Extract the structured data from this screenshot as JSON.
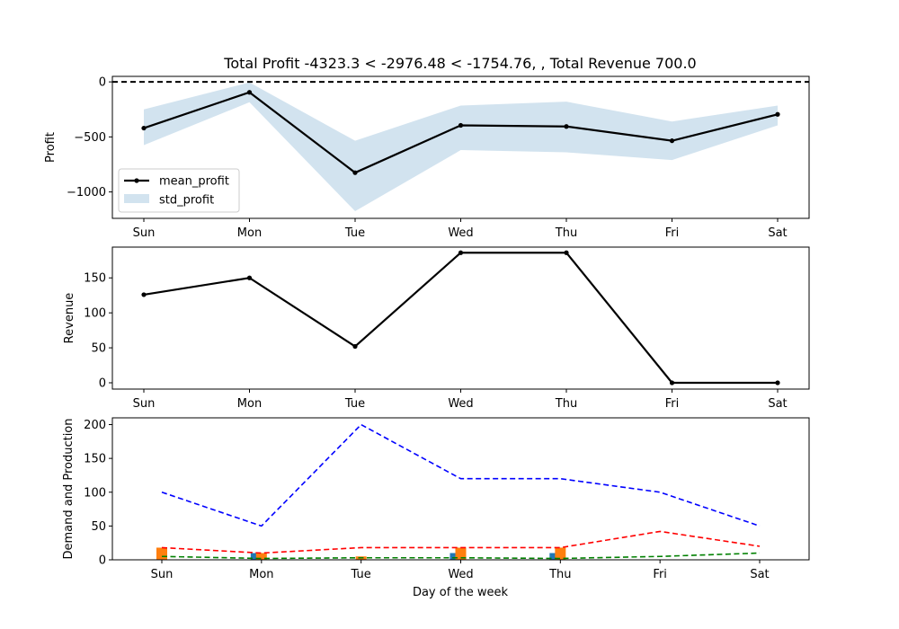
{
  "chart_data": [
    {
      "type": "line",
      "title": "Total Profit -4323.3 < -2976.48 < -1754.76, , Total Revenue 700.0",
      "xlabel": "",
      "ylabel": "Profit",
      "categories": [
        "Sun",
        "Mon",
        "Tue",
        "Wed",
        "Thu",
        "Fri",
        "Sat"
      ],
      "yticks": [
        0,
        -500,
        -1000
      ],
      "ytick_labels": [
        "0",
        "−500",
        "−1000"
      ],
      "ylim": [
        -1240,
        50
      ],
      "reference_line": 0,
      "series": [
        {
          "name": "mean_profit",
          "values": [
            -420,
            -95,
            -825,
            -395,
            -405,
            -535,
            -295
          ],
          "color": "#000000"
        }
      ],
      "band": {
        "name": "std_profit",
        "lower": [
          -575,
          -185,
          -1175,
          -620,
          -640,
          -710,
          -395
        ],
        "upper": [
          -250,
          -5,
          -535,
          -215,
          -180,
          -360,
          -215
        ],
        "color": "#a6c8e0"
      },
      "legend": "lower-left"
    },
    {
      "type": "line",
      "xlabel": "",
      "ylabel": "Revenue",
      "categories": [
        "Sun",
        "Mon",
        "Tue",
        "Wed",
        "Thu",
        "Fri",
        "Sat"
      ],
      "yticks": [
        0,
        50,
        100,
        150
      ],
      "ytick_labels": [
        "0",
        "50",
        "100",
        "150"
      ],
      "ylim": [
        -9,
        194
      ],
      "series": [
        {
          "values": [
            126,
            150,
            52,
            186,
            186,
            0,
            0
          ],
          "color": "#000000"
        }
      ]
    },
    {
      "type": "line",
      "xlabel": "Day of the week",
      "ylabel": "Demand and Production",
      "categories": [
        "Sun",
        "Mon",
        "Tue",
        "Wed",
        "Thu",
        "Fri",
        "Sat"
      ],
      "yticks": [
        0,
        50,
        100,
        150,
        200
      ],
      "ytick_labels": [
        "0",
        "50",
        "100",
        "150",
        "200"
      ],
      "ylim": [
        0,
        210
      ],
      "series": [
        {
          "values": [
            100,
            50,
            200,
            120,
            120,
            100,
            50
          ],
          "color": "#0000ff",
          "style": "dashed"
        },
        {
          "values": [
            18,
            10,
            18,
            18,
            18,
            42,
            20
          ],
          "color": "#ff0000",
          "style": "dashed"
        },
        {
          "values": [
            5,
            2,
            3,
            3,
            2,
            5,
            10
          ],
          "color": "#008000",
          "style": "dashed"
        }
      ],
      "bars": [
        {
          "color": "#1f77b4",
          "values": [
            0,
            10,
            0,
            10,
            10,
            0,
            0
          ]
        },
        {
          "color": "#ff7f0e",
          "values": [
            18,
            10,
            5,
            18,
            18,
            0,
            0
          ]
        }
      ]
    }
  ]
}
